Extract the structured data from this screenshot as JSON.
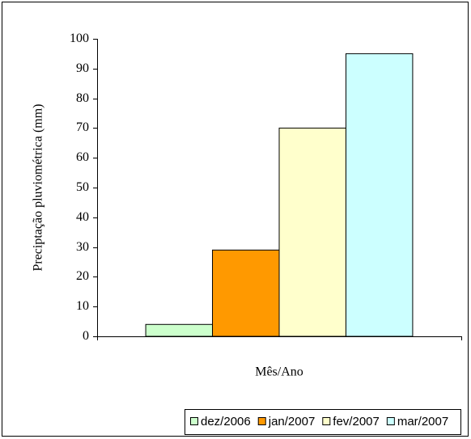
{
  "chart_data": {
    "type": "bar",
    "y_label": "Preciptação pluviométrica (mm)",
    "x_label": "Mês/Ano",
    "categories": [
      null
    ],
    "series": [
      {
        "name": "dez/2006",
        "color": "#ccffcc",
        "values": [
          4
        ]
      },
      {
        "name": "jan/2007",
        "color": "#ff9900",
        "values": [
          29
        ]
      },
      {
        "name": "fev/2007",
        "color": "#ffffcc",
        "values": [
          70
        ]
      },
      {
        "name": "mar/2007",
        "color": "#ccffff",
        "values": [
          95
        ]
      }
    ],
    "ylim": [
      0,
      100
    ],
    "yticks": [
      0,
      10,
      20,
      30,
      40,
      50,
      60,
      70,
      80,
      90,
      100
    ],
    "grid": false,
    "legend": "bottom"
  }
}
